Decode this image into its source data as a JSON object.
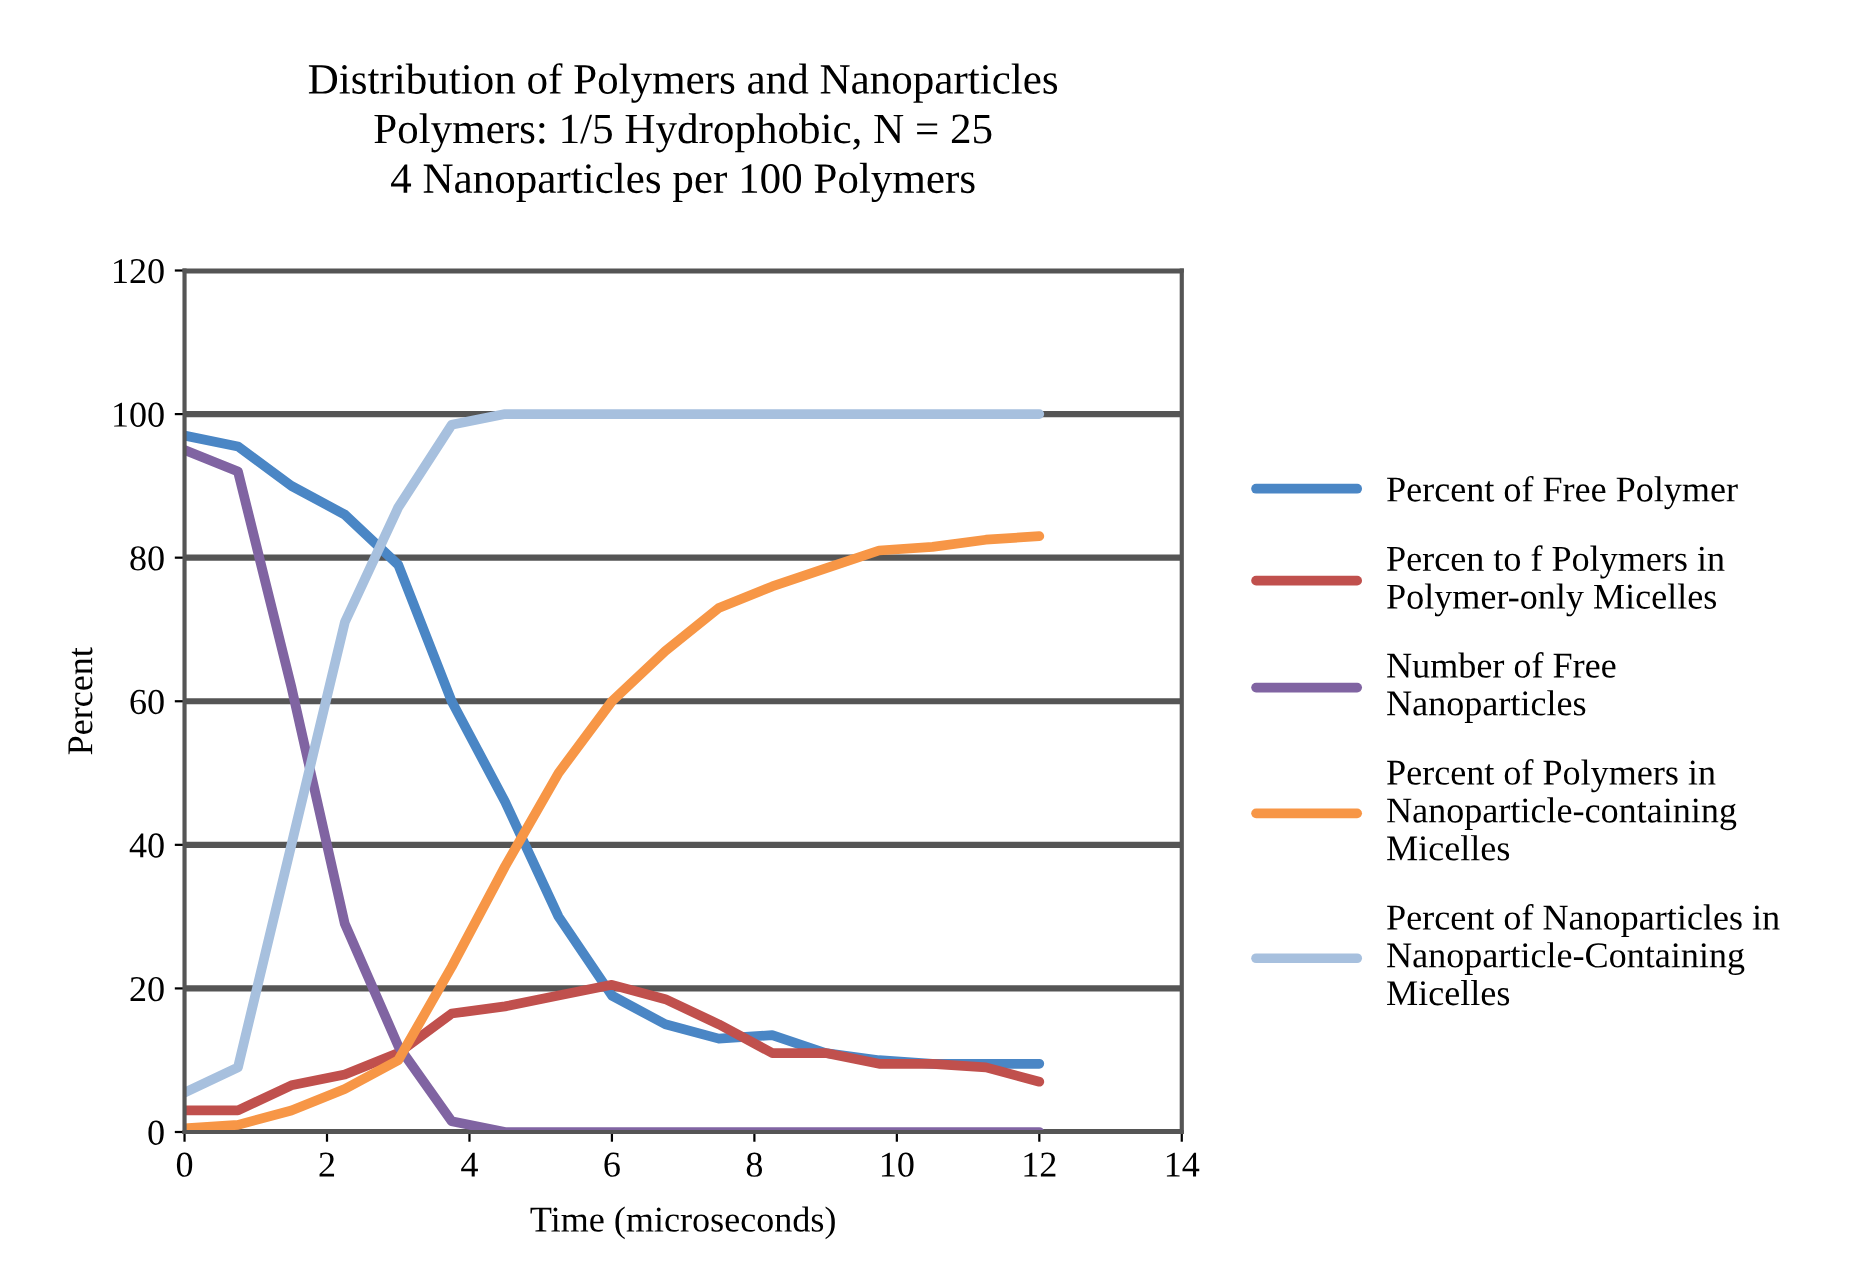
{
  "chart_data": {
    "type": "line",
    "title": "Distribution of Polymers and Nanoparticles\nPolymers: 1/5 Hydrophobic, N = 25\n4 Nanoparticles per 100 Polymers",
    "xlabel": "Time (microseconds)",
    "ylabel": "Percent",
    "x": [
      0,
      0.75,
      1.5,
      2.25,
      3,
      3.75,
      4.5,
      5.25,
      6,
      6.75,
      7.5,
      8.25,
      9,
      9.75,
      10.5,
      11.25,
      12
    ],
    "series": [
      {
        "name": "Percent of Free Polymer",
        "color": "#4a86c5",
        "values": [
          97,
          95.5,
          90,
          86,
          79,
          60,
          46,
          30,
          19,
          15,
          13,
          13.5,
          11,
          10,
          9.5,
          9.5,
          9.5
        ]
      },
      {
        "name": "Percen to f Polymers in\nPolymer-only Micelles",
        "color": "#c0504d",
        "values": [
          3,
          3,
          6.5,
          8,
          11,
          16.5,
          17.5,
          19,
          20.5,
          18.5,
          15,
          11,
          11,
          9.5,
          9.5,
          9,
          7
        ]
      },
      {
        "name": "Number of Free\nNanoparticles",
        "color": "#8064a2",
        "values": [
          95,
          92,
          62,
          29,
          12,
          1.5,
          0,
          0,
          0,
          0,
          0,
          0,
          0,
          0,
          0,
          0,
          0
        ]
      },
      {
        "name": "Percent of Polymers in\nNanoparticle-containing\nMicelles",
        "color": "#f79646",
        "values": [
          0.5,
          1,
          3,
          6,
          10,
          23,
          37,
          50,
          60,
          67,
          73,
          76,
          78.5,
          81,
          81.5,
          82.5,
          83
        ]
      },
      {
        "name": "Percent of Nanoparticles in\nNanoparticle-Containing\nMicelles",
        "color": "#a7c0de",
        "values": [
          5.5,
          9,
          40,
          71,
          87,
          98.5,
          100,
          100,
          100,
          100,
          100,
          100,
          100,
          100,
          100,
          100,
          100
        ]
      }
    ],
    "xlim": [
      0,
      14
    ],
    "xticks": [
      0,
      2,
      4,
      6,
      8,
      10,
      12,
      14
    ],
    "ylim": [
      0,
      120
    ],
    "yticks": [
      0,
      20,
      40,
      60,
      80,
      100,
      120
    ],
    "grid": "y",
    "legend": "right",
    "marker": "none",
    "line_style": "solid"
  }
}
